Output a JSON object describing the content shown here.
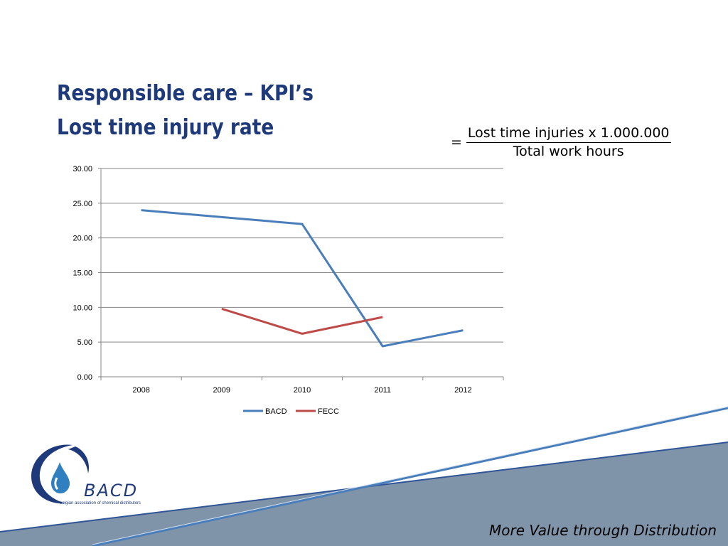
{
  "slide": {
    "title_line1": "Responsible care – KPI’s",
    "title_line2": "Lost time injury rate",
    "formula": {
      "equals": "=",
      "numerator": "Lost time injuries x 1.000.000",
      "denominator": "Total work hours"
    },
    "footer_slogan": "More Value through Distribution",
    "logo": {
      "wordmark": "BACD",
      "tagline": "belgian association of chemical distributors"
    }
  },
  "colors": {
    "title": "#1f3a7a",
    "bacd": "#4a7ebb",
    "fecc": "#be4b48",
    "grid": "#868686",
    "band": "#7f93a9",
    "band_line": "#2f5597"
  },
  "chart_data": {
    "type": "line",
    "title": "",
    "xlabel": "",
    "ylabel": "",
    "categories": [
      "2008",
      "2009",
      "2010",
      "2011",
      "2012"
    ],
    "ylim": [
      0,
      30
    ],
    "yticks": [
      "0.00",
      "5.00",
      "10.00",
      "15.00",
      "20.00",
      "25.00",
      "30.00"
    ],
    "grid": true,
    "legend": "bottom",
    "series": [
      {
        "name": "BACD",
        "values": [
          24.0,
          23.0,
          22.0,
          4.4,
          6.7
        ]
      },
      {
        "name": "FECC",
        "values": [
          null,
          9.8,
          6.2,
          8.6,
          null
        ]
      }
    ]
  }
}
